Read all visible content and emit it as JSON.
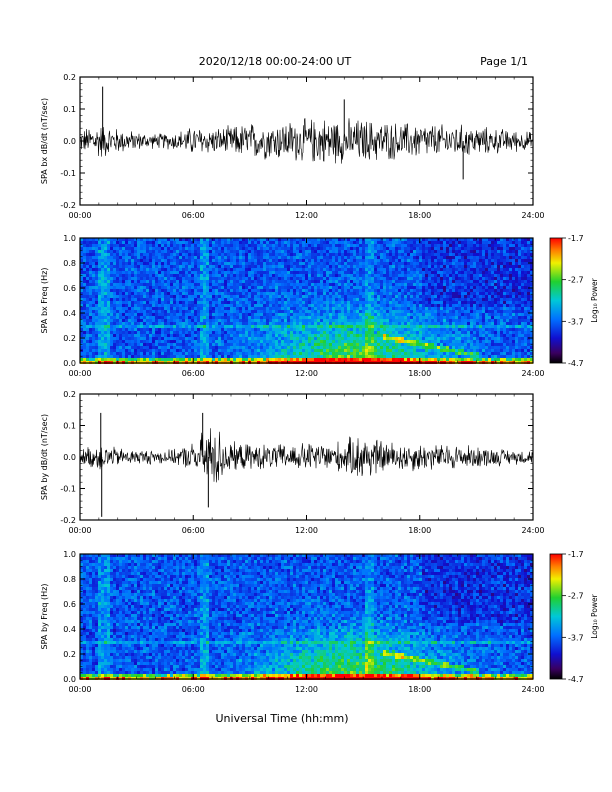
{
  "header": {
    "title": "2020/12/18  00:00-24:00 UT",
    "page": "Page 1/1"
  },
  "footer": {
    "xlabel": "Universal Time (hh:mm)"
  },
  "chart_data": [
    {
      "type": "line",
      "ylabel": "SPA bx dB/dt (nT/sec)",
      "xlim": [
        0,
        24
      ],
      "ylim": [
        -0.2,
        0.2
      ],
      "x_ticks": [
        "00:00",
        "06:00",
        "12:00",
        "18:00",
        "24:00"
      ],
      "y_ticks": [
        "-0.2",
        "-0.1",
        "0.0",
        "0.1",
        "0.2"
      ],
      "envelope": {
        "x_hours": [
          0,
          1,
          2,
          3,
          4,
          5,
          6,
          7,
          8,
          9,
          10,
          11,
          12,
          13,
          14,
          15,
          16,
          17,
          18,
          19,
          20,
          21,
          22,
          23,
          24
        ],
        "amplitude": [
          0.03,
          0.05,
          0.035,
          0.025,
          0.02,
          0.025,
          0.04,
          0.035,
          0.04,
          0.05,
          0.05,
          0.055,
          0.06,
          0.065,
          0.06,
          0.06,
          0.055,
          0.05,
          0.05,
          0.045,
          0.045,
          0.04,
          0.035,
          0.03,
          0.025
        ],
        "peaks": [
          {
            "x": 1.2,
            "y": 0.17
          },
          {
            "x": 14.0,
            "y": 0.13
          },
          {
            "x": 20.3,
            "y": -0.12
          }
        ]
      },
      "line_color": "#000000"
    },
    {
      "type": "heatmap",
      "ylabel": "SPA bx Freq (Hz)",
      "xlim": [
        0,
        24
      ],
      "ylim": [
        0.0,
        1.0
      ],
      "x_ticks": [
        "00:00",
        "06:00",
        "12:00",
        "18:00",
        "24:00"
      ],
      "y_ticks": [
        "0.0",
        "0.2",
        "0.4",
        "0.6",
        "0.8",
        "1.0"
      ],
      "colorbar": {
        "label": "Log₁₀ Power",
        "ticks": [
          "-1.7",
          "-2.7",
          "-3.7",
          "-4.7"
        ],
        "range": [
          -4.7,
          -1.7
        ],
        "colormap": "rainbow"
      }
    },
    {
      "type": "line",
      "ylabel": "SPA by dB/dt (nT/sec)",
      "xlim": [
        0,
        24
      ],
      "ylim": [
        -0.2,
        0.2
      ],
      "x_ticks": [
        "00:00",
        "06:00",
        "12:00",
        "18:00",
        "24:00"
      ],
      "y_ticks": [
        "-0.2",
        "-0.1",
        "0.0",
        "0.1",
        "0.2"
      ],
      "envelope": {
        "x_hours": [
          0,
          1,
          2,
          3,
          4,
          5,
          6,
          7,
          8,
          9,
          10,
          11,
          12,
          13,
          14,
          15,
          16,
          17,
          18,
          19,
          20,
          21,
          22,
          23,
          24
        ],
        "amplitude": [
          0.02,
          0.04,
          0.025,
          0.02,
          0.02,
          0.02,
          0.04,
          0.1,
          0.04,
          0.035,
          0.035,
          0.035,
          0.04,
          0.04,
          0.045,
          0.07,
          0.045,
          0.04,
          0.04,
          0.035,
          0.035,
          0.03,
          0.025,
          0.02,
          0.02
        ],
        "peaks": [
          {
            "x": 1.1,
            "y": 0.14
          },
          {
            "x": 1.15,
            "y": -0.19
          },
          {
            "x": 6.5,
            "y": 0.14
          },
          {
            "x": 6.8,
            "y": -0.16
          }
        ]
      },
      "line_color": "#000000"
    },
    {
      "type": "heatmap",
      "ylabel": "SPA by Freq (Hz)",
      "xlim": [
        0,
        24
      ],
      "ylim": [
        0.0,
        1.0
      ],
      "x_ticks": [
        "00:00",
        "06:00",
        "12:00",
        "18:00",
        "24:00"
      ],
      "y_ticks": [
        "0.0",
        "0.2",
        "0.4",
        "0.6",
        "0.8",
        "1.0"
      ],
      "colorbar": {
        "label": "Log₁₀ Power",
        "ticks": [
          "-1.7",
          "-2.7",
          "-3.7",
          "-4.7"
        ],
        "range": [
          -4.7,
          -1.7
        ],
        "colormap": "rainbow"
      }
    }
  ]
}
